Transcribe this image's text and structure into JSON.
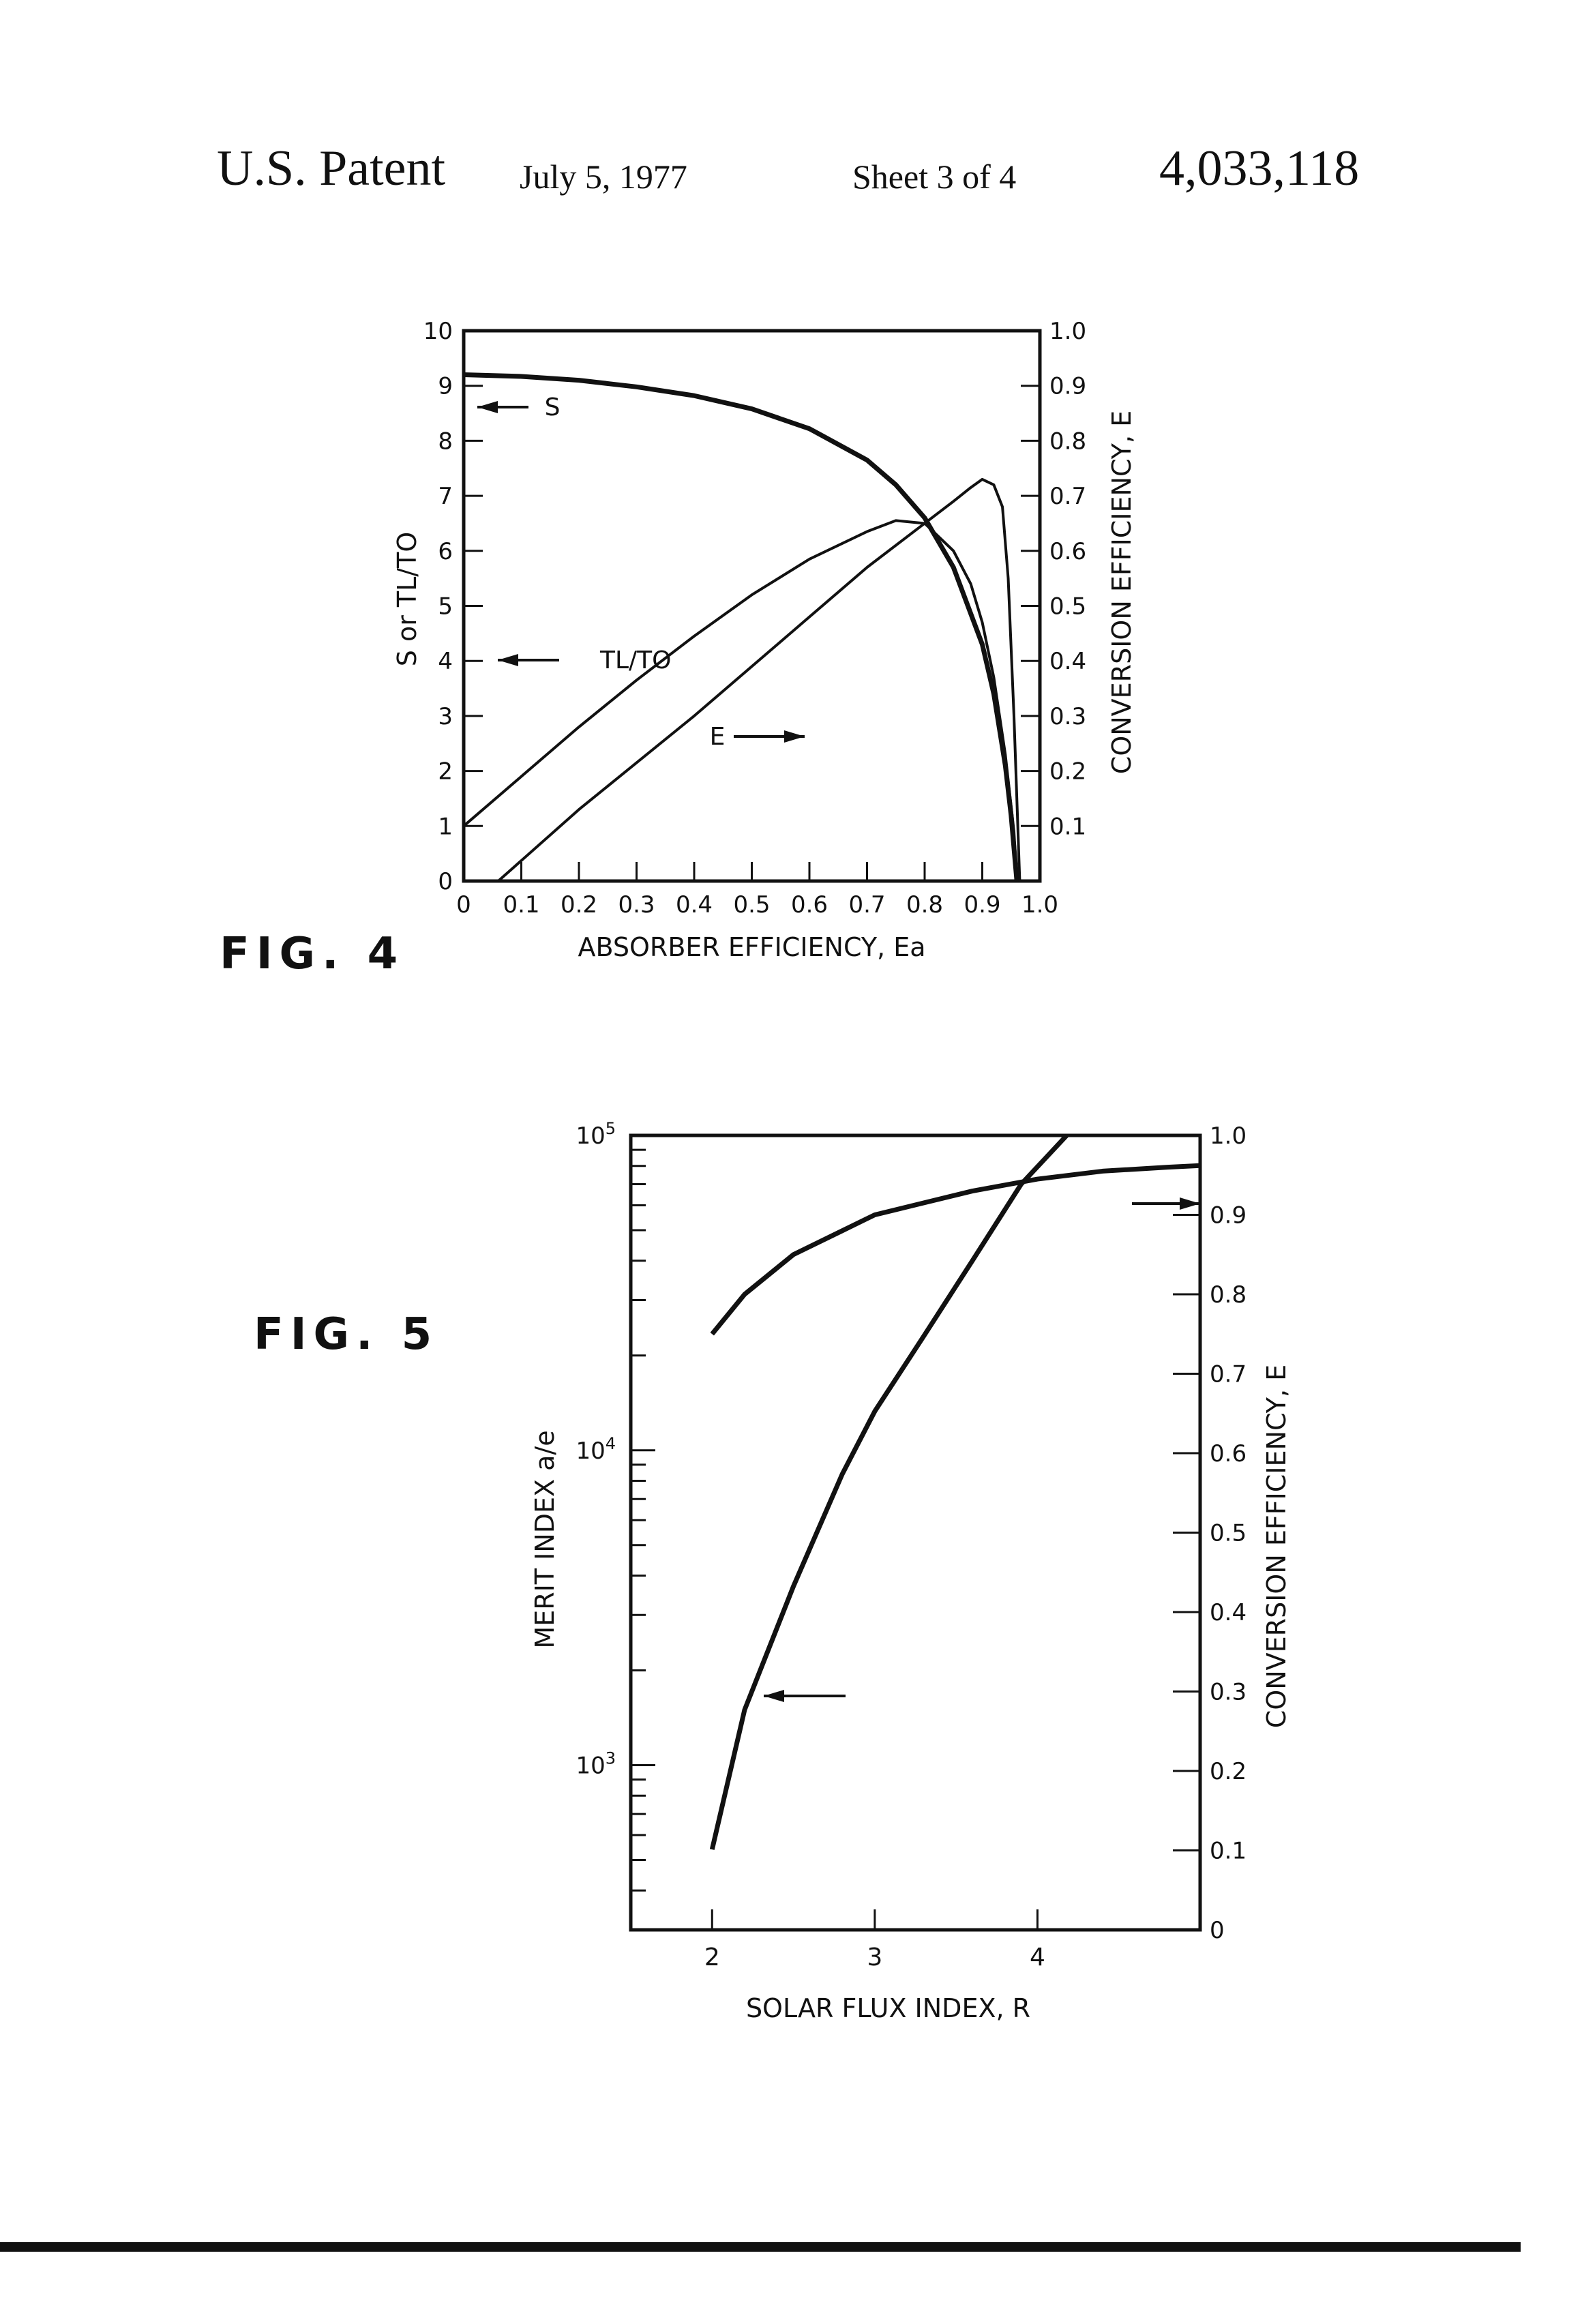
{
  "header": {
    "left": "U.S. Patent",
    "date": "July 5, 1977",
    "sheet": "Sheet 3 of 4",
    "patent_number": "4,033,118"
  },
  "fig4": {
    "label": "FIG. 4"
  },
  "fig5": {
    "label": "FIG. 5"
  },
  "chart_data": [
    {
      "type": "line",
      "figure": "FIG. 4",
      "xlabel": "ABSORBER EFFICIENCY, Ea",
      "ylabel_left": "S or TL/TO",
      "ylabel_right": "CONVERSION EFFICIENCY, E",
      "xlim": [
        0,
        1.0
      ],
      "ylim_left": [
        0,
        10
      ],
      "ylim_right": [
        0,
        1.0
      ],
      "x_ticks": [
        "0",
        "0.1",
        "0.2",
        "0.3",
        "0.4",
        "0.5",
        "0.6",
        "0.7",
        "0.8",
        "0.9",
        "1.0"
      ],
      "y_left_ticks": [
        "0",
        "1",
        "2",
        "3",
        "4",
        "5",
        "6",
        "7",
        "8",
        "9",
        "10"
      ],
      "y_right_ticks": [
        "0.1",
        "0.2",
        "0.3",
        "0.4",
        "0.5",
        "0.6",
        "0.7",
        "0.8",
        "0.9",
        "1.0"
      ],
      "grid": false,
      "series": [
        {
          "name": "S",
          "axis": "left",
          "x": [
            0,
            0.1,
            0.2,
            0.3,
            0.4,
            0.5,
            0.6,
            0.7,
            0.75,
            0.8,
            0.85,
            0.9,
            0.92,
            0.94,
            0.95,
            0.96
          ],
          "y": [
            9.2,
            9.17,
            9.1,
            8.98,
            8.82,
            8.58,
            8.22,
            7.65,
            7.2,
            6.6,
            5.7,
            4.3,
            3.4,
            2.1,
            1.2,
            0
          ]
        },
        {
          "name": "TL/TO",
          "axis": "left",
          "x": [
            0,
            0.1,
            0.2,
            0.3,
            0.4,
            0.5,
            0.6,
            0.7,
            0.75,
            0.8,
            0.85,
            0.88,
            0.9,
            0.92,
            0.94,
            0.955,
            0.96
          ],
          "y": [
            1.0,
            1.9,
            2.8,
            3.65,
            4.45,
            5.2,
            5.85,
            6.35,
            6.55,
            6.5,
            6.0,
            5.4,
            4.7,
            3.7,
            2.3,
            0.9,
            0
          ]
        },
        {
          "name": "E",
          "axis": "right",
          "x": [
            0.06,
            0.2,
            0.4,
            0.6,
            0.7,
            0.8,
            0.85,
            0.88,
            0.9,
            0.92,
            0.935,
            0.945,
            0.955,
            0.965
          ],
          "y": [
            0.0,
            0.13,
            0.3,
            0.48,
            0.57,
            0.65,
            0.69,
            0.715,
            0.73,
            0.72,
            0.68,
            0.55,
            0.3,
            0.0
          ]
        }
      ],
      "annotations": [
        "S",
        "TL/TO",
        "E"
      ]
    },
    {
      "type": "line",
      "figure": "FIG. 5",
      "xlabel": "SOLAR FLUX INDEX, R",
      "ylabel_left": "MERIT INDEX a/e",
      "ylabel_right": "CONVERSION EFFICIENCY, E",
      "xlim": [
        1.5,
        5.0
      ],
      "ylim_left_log": [
        300,
        100000
      ],
      "ylim_right": [
        0,
        1.0
      ],
      "x_ticks": [
        "2",
        "3",
        "4"
      ],
      "y_left_ticks": [
        "10^3",
        "10^4",
        "10^5"
      ],
      "y_right_ticks": [
        "0",
        "0.1",
        "0.2",
        "0.3",
        "0.4",
        "0.5",
        "0.6",
        "0.7",
        "0.8",
        "0.9",
        "1.0"
      ],
      "grid": false,
      "series": [
        {
          "name": "merit index a/e",
          "axis": "left",
          "x": [
            2.0,
            2.2,
            2.5,
            2.8,
            3.0,
            3.3,
            3.6,
            3.9,
            4.18
          ],
          "y": [
            540,
            1500,
            3700,
            8400,
            13300,
            23000,
            40000,
            70000,
            100000
          ]
        },
        {
          "name": "conversion efficiency E",
          "axis": "right",
          "x": [
            2.0,
            2.2,
            2.5,
            2.8,
            3.0,
            3.3,
            3.6,
            4.0,
            4.4,
            4.8,
            5.0
          ],
          "y": [
            0.75,
            0.8,
            0.85,
            0.88,
            0.9,
            0.915,
            0.93,
            0.945,
            0.955,
            0.96,
            0.962
          ]
        }
      ],
      "annotations": [
        "arrow-right-to-right-axis",
        "arrow-left-to-left-axis"
      ]
    }
  ]
}
